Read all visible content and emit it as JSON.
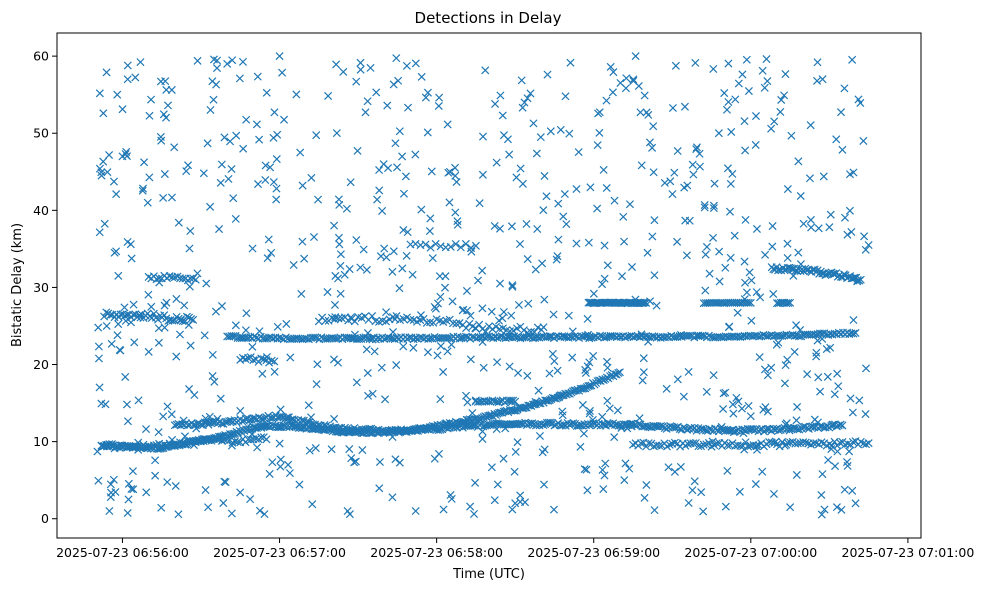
{
  "chart_data": {
    "type": "scatter",
    "title": "Detections in Delay",
    "xlabel": "Time (UTC)",
    "ylabel": "Bistatic Delay (km)",
    "marker": "x",
    "color": "#1f77b4",
    "x_unit": "seconds after 2025-07-23 06:56:00 UTC",
    "xlim": [
      -25,
      305
    ],
    "ylim": [
      -2.5,
      63
    ],
    "xticks": [
      {
        "value": 0,
        "label": "2025-07-23 06:56:00"
      },
      {
        "value": 60,
        "label": "2025-07-23 06:57:00"
      },
      {
        "value": 120,
        "label": "2025-07-23 06:58:00"
      },
      {
        "value": 180,
        "label": "2025-07-23 06:59:00"
      },
      {
        "value": 240,
        "label": "2025-07-23 07:00:00"
      },
      {
        "value": 300,
        "label": "2025-07-23 07:01:00"
      }
    ],
    "yticks": [
      {
        "value": 0,
        "label": "0"
      },
      {
        "value": 10,
        "label": "10"
      },
      {
        "value": 20,
        "label": "20"
      },
      {
        "value": 30,
        "label": "30"
      },
      {
        "value": 40,
        "label": "40"
      },
      {
        "value": 50,
        "label": "50"
      },
      {
        "value": 60,
        "label": "60"
      }
    ],
    "tracks": [
      {
        "name": "main-curve",
        "points": [
          [
            -8,
            9.5
          ],
          [
            5,
            9.3
          ],
          [
            12,
            9.1
          ],
          [
            20,
            9.5
          ],
          [
            28,
            10.0
          ],
          [
            38,
            10.7
          ],
          [
            46,
            11.4
          ],
          [
            55,
            12.0
          ],
          [
            65,
            12.0
          ],
          [
            75,
            11.6
          ],
          [
            85,
            11.3
          ],
          [
            95,
            11.2
          ],
          [
            105,
            11.3
          ],
          [
            115,
            11.7
          ],
          [
            125,
            12.3
          ],
          [
            135,
            12.9
          ],
          [
            145,
            13.7
          ],
          [
            155,
            14.6
          ],
          [
            165,
            15.6
          ],
          [
            175,
            16.8
          ],
          [
            185,
            18.2
          ],
          [
            190,
            19.0
          ]
        ],
        "step": 0.6,
        "jitter": 0.15
      },
      {
        "name": "crossing-track",
        "points": [
          [
            20,
            12.2
          ],
          [
            30,
            12.3
          ],
          [
            40,
            12.5
          ],
          [
            50,
            13.0
          ],
          [
            60,
            13.3
          ],
          [
            70,
            12.5
          ],
          [
            80,
            11.8
          ],
          [
            95,
            11.5
          ],
          [
            110,
            11.4
          ],
          [
            125,
            11.8
          ],
          [
            140,
            12.2
          ],
          [
            160,
            12.3
          ],
          [
            175,
            12.2
          ],
          [
            195,
            12.2
          ],
          [
            210,
            11.8
          ],
          [
            225,
            11.5
          ],
          [
            245,
            11.5
          ],
          [
            260,
            11.8
          ],
          [
            275,
            12.1
          ]
        ],
        "step": 0.7,
        "jitter": 0.2
      },
      {
        "name": "band-23.5",
        "points": [
          [
            40,
            23.6
          ],
          [
            60,
            23.4
          ],
          [
            100,
            23.4
          ],
          [
            140,
            23.5
          ],
          [
            180,
            23.6
          ],
          [
            220,
            23.6
          ],
          [
            260,
            23.8
          ],
          [
            280,
            24.1
          ]
        ],
        "step": 0.8,
        "jitter": 0.15
      },
      {
        "name": "band-28",
        "points": [
          [
            178,
            28.0
          ],
          [
            200,
            28.0
          ]
        ],
        "step": 0.5,
        "jitter": 0.05
      },
      {
        "name": "band-28b",
        "points": [
          [
            222,
            28.0
          ],
          [
            240,
            28.0
          ]
        ],
        "step": 0.8,
        "jitter": 0.05
      },
      {
        "name": "band-28c",
        "points": [
          [
            250,
            28.0
          ],
          [
            255,
            28.0
          ]
        ],
        "step": 0.7,
        "jitter": 0.05
      },
      {
        "name": "band-26-left",
        "points": [
          [
            -7,
            26.5
          ],
          [
            12,
            26.2
          ],
          [
            27,
            25.8
          ]
        ],
        "step": 0.8,
        "jitter": 0.4
      },
      {
        "name": "band-26-mid",
        "points": [
          [
            75,
            25.8
          ],
          [
            90,
            25.9
          ],
          [
            110,
            25.9
          ],
          [
            125,
            25.5
          ],
          [
            140,
            24.6
          ],
          [
            160,
            24.5
          ]
        ],
        "step": 1.3,
        "jitter": 0.4
      },
      {
        "name": "band-31-left",
        "points": [
          [
            10,
            31.4
          ],
          [
            28,
            31.0
          ]
        ],
        "step": 1.0,
        "jitter": 0.3
      },
      {
        "name": "band-32-right",
        "points": [
          [
            248,
            32.5
          ],
          [
            262,
            32.2
          ],
          [
            275,
            31.5
          ],
          [
            282,
            31.0
          ]
        ],
        "step": 0.6,
        "jitter": 0.25
      },
      {
        "name": "band-21",
        "points": [
          [
            45,
            20.8
          ],
          [
            58,
            20.4
          ]
        ],
        "step": 1.0,
        "jitter": 0.3
      },
      {
        "name": "band-9.5-right",
        "points": [
          [
            195,
            9.6
          ],
          [
            230,
            9.6
          ],
          [
            260,
            9.7
          ],
          [
            285,
            9.8
          ]
        ],
        "step": 1.0,
        "jitter": 0.3
      },
      {
        "name": "band-10-left",
        "points": [
          [
            -8,
            9.5
          ],
          [
            5,
            9.2
          ],
          [
            30,
            10.0
          ],
          [
            55,
            10.3
          ]
        ],
        "step": 1.0,
        "jitter": 0.3
      },
      {
        "name": "band-15",
        "points": [
          [
            135,
            15.2
          ],
          [
            150,
            15.2
          ]
        ],
        "step": 0.8,
        "jitter": 0.15
      },
      {
        "name": "band-35",
        "points": [
          [
            110,
            35.4
          ],
          [
            135,
            35.4
          ]
        ],
        "step": 2.0,
        "jitter": 0.3
      }
    ],
    "scatter_noise": {
      "count": 820,
      "x_range": [
        -10,
        285
      ],
      "y_range": [
        0.5,
        59.8
      ],
      "seed": 20250723
    },
    "scatter_points": [
      [
        -8,
        44.5
      ],
      [
        -5,
        1.0
      ],
      [
        -2,
        55.0
      ],
      [
        2,
        57.0
      ],
      [
        40,
        59.0
      ],
      [
        60,
        60.0
      ],
      [
        86,
        1.0
      ],
      [
        112,
        1.0
      ],
      [
        150,
        2.0
      ],
      [
        196,
        60.0
      ],
      [
        255,
        1.5
      ],
      [
        280,
        2.0
      ],
      [
        283,
        49.0
      ],
      [
        285,
        35.5
      ],
      [
        284,
        19.5
      ],
      [
        -6,
        25.0
      ],
      [
        -3,
        34.5
      ],
      [
        0,
        47.0
      ]
    ]
  }
}
